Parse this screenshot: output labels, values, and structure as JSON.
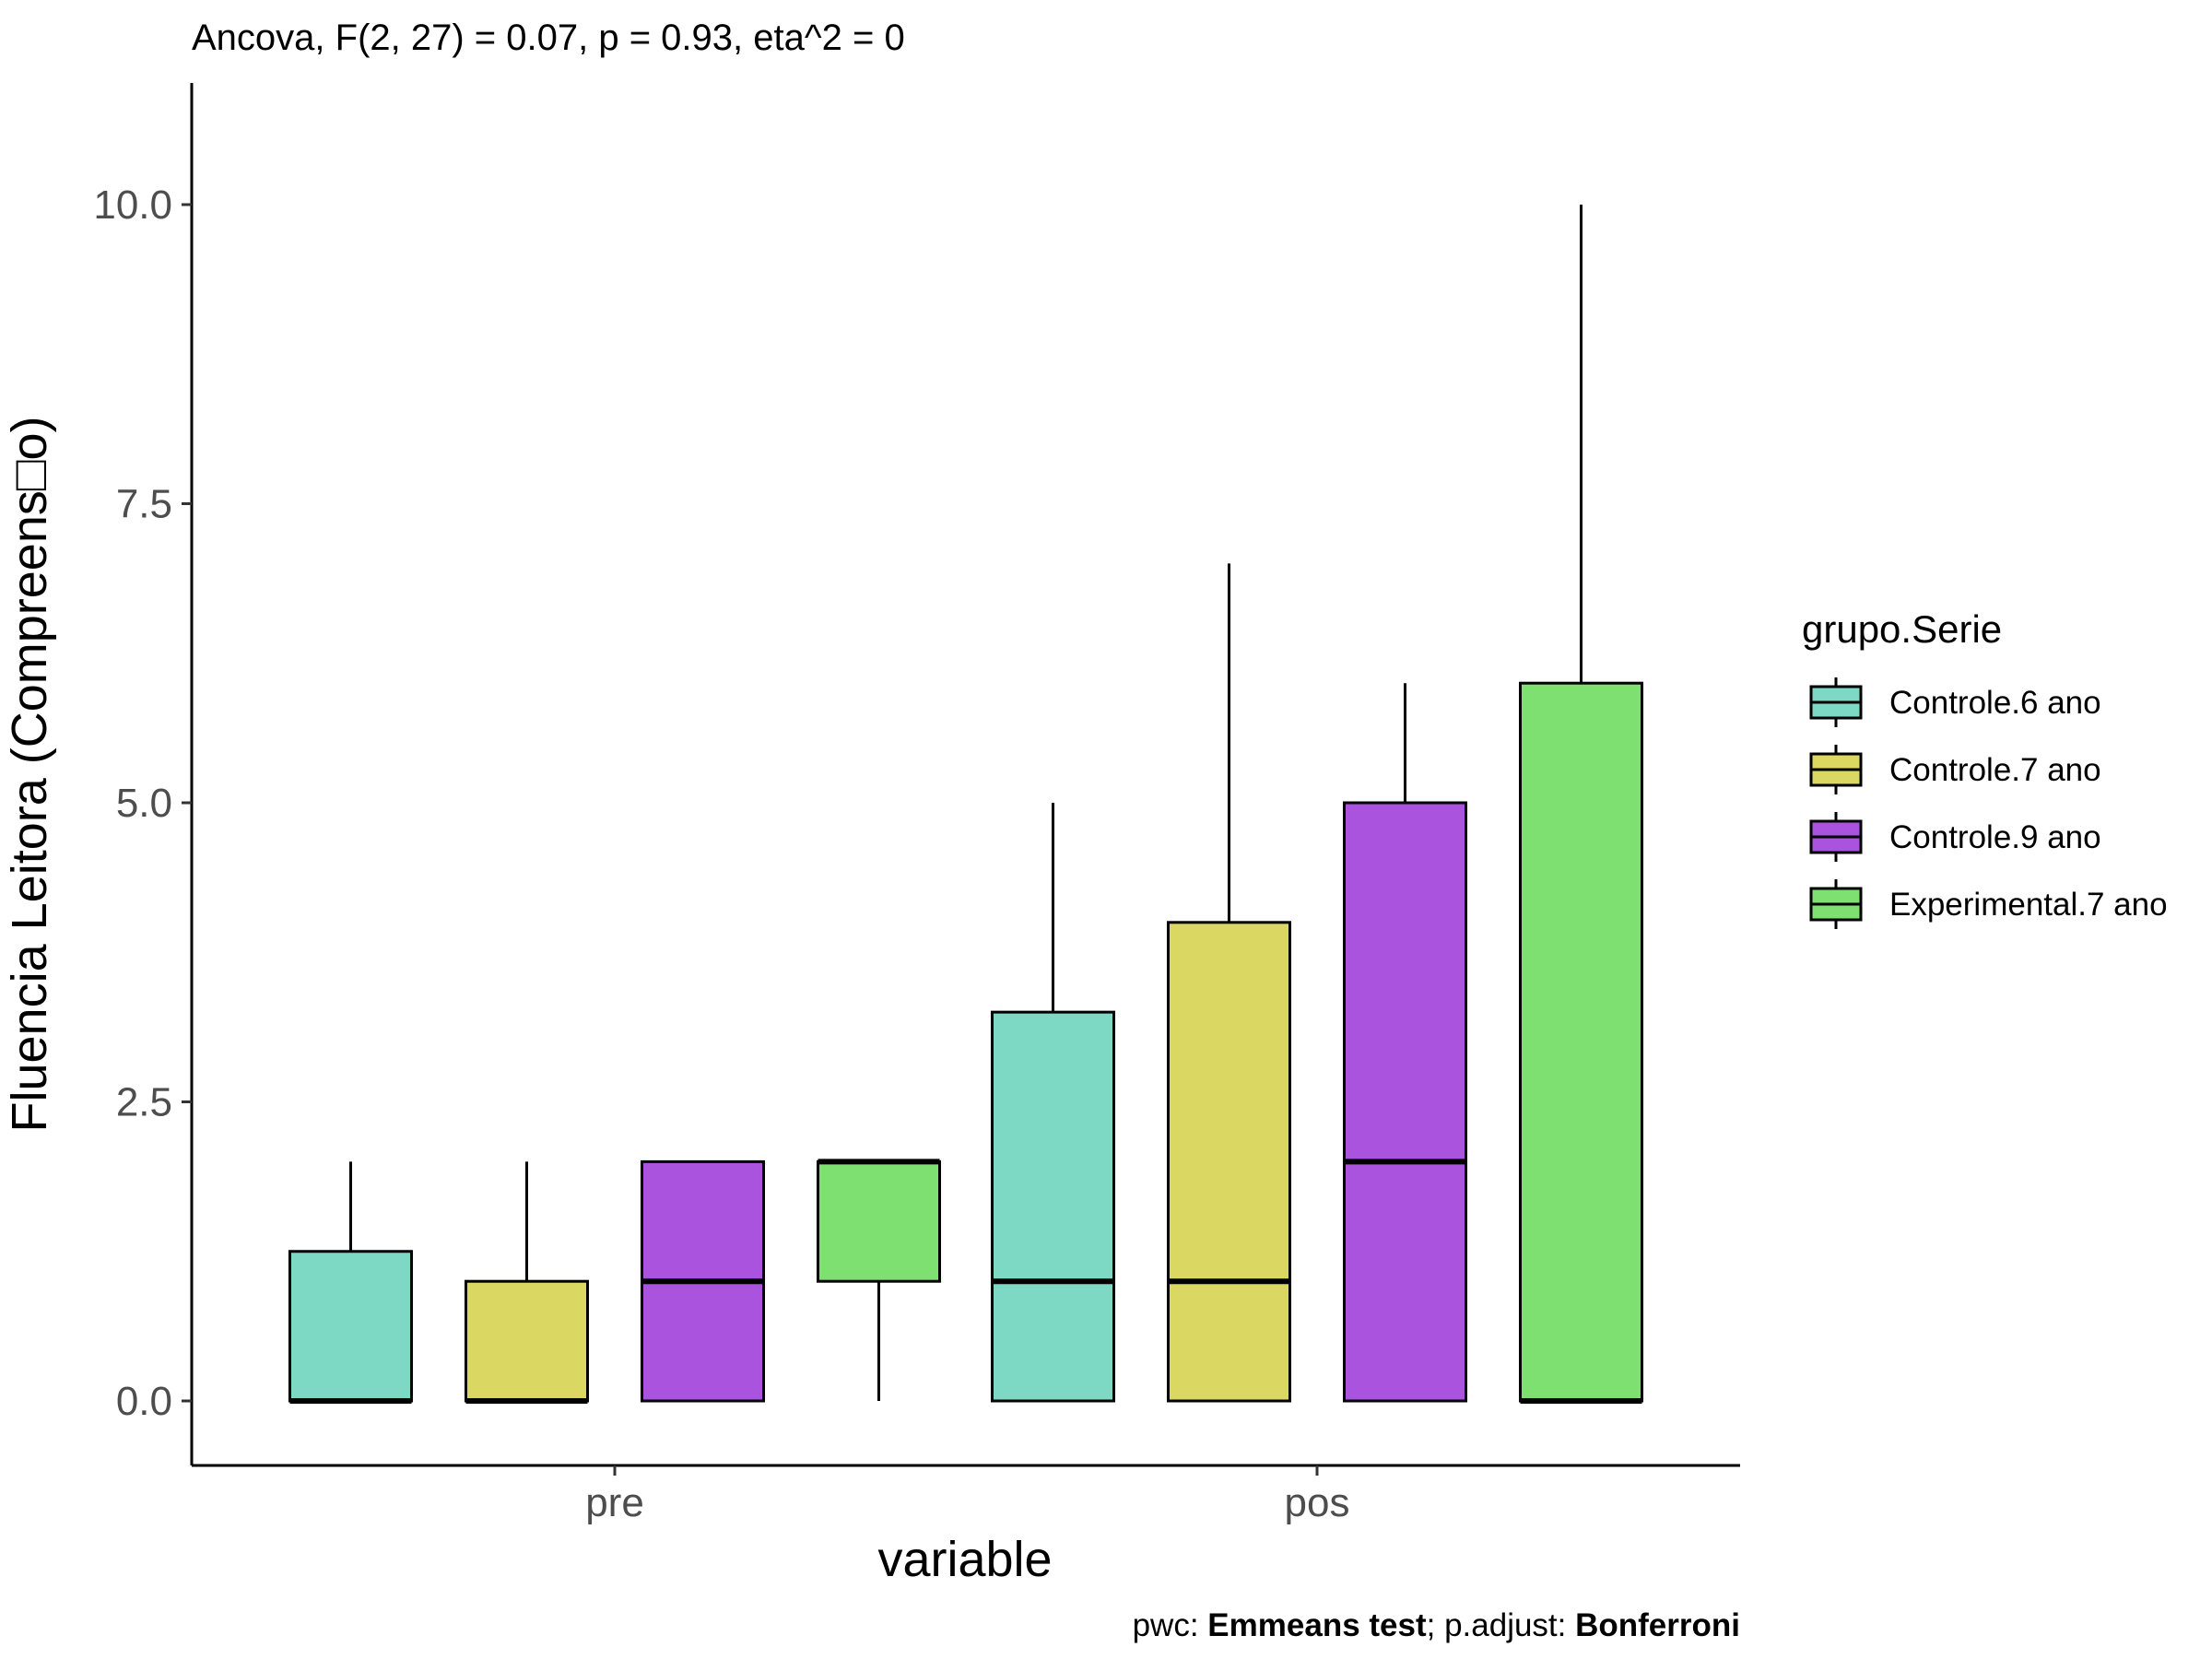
{
  "chart_data": {
    "type": "boxplot",
    "title": "Ancova, F(2, 27) = 0.07, p = 0.93, eta^2 = 0",
    "xlabel": "variable",
    "ylabel": "Fluencia Leitora (Compreens□o)",
    "categories": [
      "pre",
      "pos"
    ],
    "ylim": [
      -0.5,
      11
    ],
    "yticks": [
      "0.0",
      "2.5",
      "5.0",
      "7.5",
      "10.0"
    ],
    "ytick_values": [
      0,
      2.5,
      5,
      7.5,
      10
    ],
    "grid": false,
    "legend": {
      "title": "grupo.Serie",
      "position": "right"
    },
    "series": [
      {
        "name": "Controle.6 ano",
        "color": "#7dd8c4",
        "boxes": [
          {
            "category": "pre",
            "min": 0,
            "q1": 0,
            "median": 0,
            "q3": 1.25,
            "max": 2
          },
          {
            "category": "pos",
            "min": 0,
            "q1": 0,
            "median": 1,
            "q3": 3.25,
            "max": 5
          }
        ]
      },
      {
        "name": "Controle.7 ano",
        "color": "#dad762",
        "boxes": [
          {
            "category": "pre",
            "min": 0,
            "q1": 0,
            "median": 0,
            "q3": 1,
            "max": 2
          },
          {
            "category": "pos",
            "min": 0,
            "q1": 0,
            "median": 1,
            "q3": 4,
            "max": 7
          }
        ]
      },
      {
        "name": "Controle.9 ano",
        "color": "#a953df",
        "boxes": [
          {
            "category": "pre",
            "min": 0,
            "q1": 0,
            "median": 1,
            "q3": 2,
            "max": 2
          },
          {
            "category": "pos",
            "min": 0,
            "q1": 0,
            "median": 2,
            "q3": 5,
            "max": 6
          }
        ]
      },
      {
        "name": "Experimental.7 ano",
        "color": "#7de070",
        "boxes": [
          {
            "category": "pre",
            "min": 0,
            "q1": 1,
            "median": 2,
            "q3": 2,
            "max": 2
          },
          {
            "category": "pos",
            "min": 0,
            "q1": 0,
            "median": 0,
            "q3": 6,
            "max": 10
          }
        ]
      }
    ],
    "caption": {
      "parts": [
        {
          "text": "pwc: ",
          "bold": false
        },
        {
          "text": "Emmeans test",
          "bold": true
        },
        {
          "text": "; p.adjust: ",
          "bold": false
        },
        {
          "text": "Bonferroni",
          "bold": true
        }
      ]
    }
  }
}
